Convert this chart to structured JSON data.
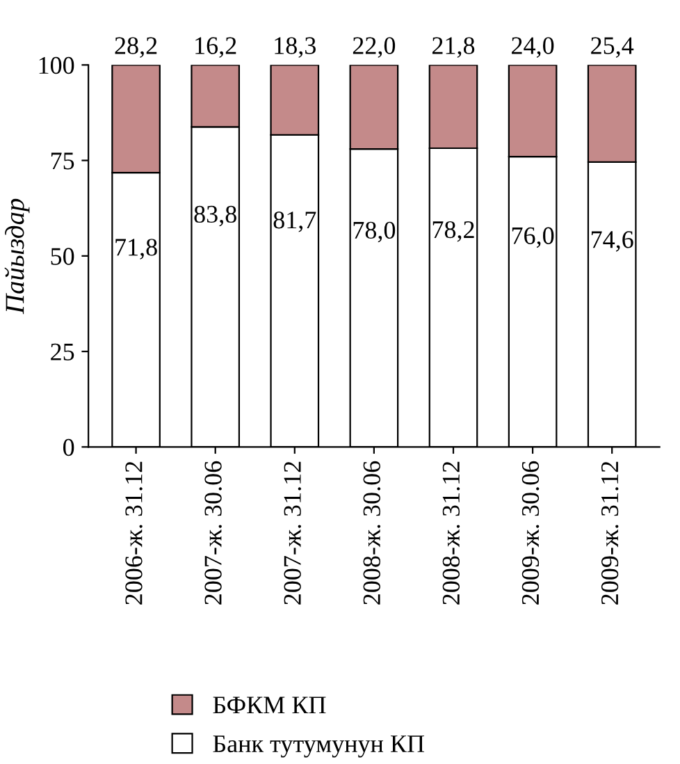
{
  "chart_data": {
    "type": "bar",
    "stacked": true,
    "ylabel": "Пайыздар",
    "categories": [
      "2006-ж. 31.12",
      "2007-ж. 30.06",
      "2007-ж. 31.12",
      "2008-ж. 30.06",
      "2008-ж. 31.12",
      "2009-ж. 30.06",
      "2009-ж. 31.12"
    ],
    "series": [
      {
        "name": "Банк тутумунун КП",
        "color": "#ffffff",
        "values": [
          71.8,
          83.8,
          81.7,
          78.0,
          78.2,
          76.0,
          74.6
        ],
        "value_labels": [
          "71,8",
          "83,8",
          "81,7",
          "78,0",
          "78,2",
          "76,0",
          "74,6"
        ]
      },
      {
        "name": "БФКМ КП",
        "color": "#c48a8a",
        "values": [
          28.2,
          16.2,
          18.3,
          22.0,
          21.8,
          24.0,
          25.4
        ],
        "value_labels": [
          "28,2",
          "16,2",
          "18,3",
          "22,0",
          "21,8",
          "24,0",
          "25,4"
        ]
      }
    ],
    "ylim": [
      0,
      100
    ],
    "yticks": [
      0,
      25,
      50,
      75,
      100
    ],
    "grid": false,
    "legend": "bottom"
  }
}
